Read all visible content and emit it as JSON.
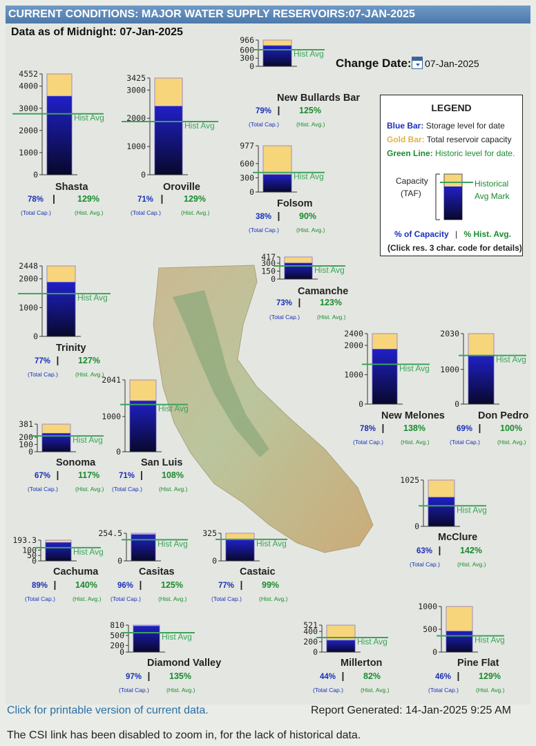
{
  "header": {
    "title": "CURRENT CONDITIONS: MAJOR WATER SUPPLY RESERVOIRS:07-JAN-2025",
    "data_as_of": "Data as of Midnight: 07-Jan-2025"
  },
  "change_date": {
    "label": "Change Date:",
    "value": "07-Jan-2025"
  },
  "legend": {
    "title": "LEGEND",
    "blue_key": "Blue Bar:",
    "blue_text": "Storage level for date",
    "gold_key": "Gold Bar:",
    "gold_text": "Total reservoir capacity",
    "green_key": "Green Line:",
    "green_text": "Historic level for date.",
    "capacity_label": "Capacity",
    "taf_label": "(TAF)",
    "hist_label_1": "Historical",
    "hist_label_2": "Avg Mark",
    "pct_capacity": "% of Capacity",
    "pct_hist": "% Hist. Avg.",
    "sep": "|",
    "note": "(Click res. 3 char. code for details)"
  },
  "colors": {
    "storage": "#1c1c9c",
    "capacity": "#f7d57b",
    "hist": "#3aa35a",
    "pct_capacity": "#1a2fb8",
    "pct_hist": "#1a8a2e",
    "header": "#5a86b8"
  },
  "labels": {
    "hist_avg": "Hist Avg",
    "total_cap": "(Total Cap.)",
    "hist_avg_small": "(Hist. Avg.)"
  },
  "chart_data": {
    "type": "bar",
    "units": "TAF",
    "reservoirs": [
      {
        "name": "Shasta",
        "capacity": 4552,
        "storage": 3551,
        "hist_avg": 2753,
        "pct_capacity": "78%",
        "pct_hist": "129%",
        "ticks": [
          "4552",
          "4000",
          "3000",
          "2000",
          "1000",
          "0"
        ]
      },
      {
        "name": "Oroville",
        "capacity": 3425,
        "storage": 2432,
        "hist_avg": 1885,
        "pct_capacity": "71%",
        "pct_hist": "129%",
        "ticks": [
          "3425",
          "3000",
          "2000",
          "1000",
          "0"
        ]
      },
      {
        "name": "New Bullards Bar",
        "capacity": 966,
        "storage": 763,
        "hist_avg": 610,
        "pct_capacity": "79%",
        "pct_hist": "125%",
        "ticks": [
          "966",
          "600",
          "300",
          "0"
        ]
      },
      {
        "name": "Folsom",
        "capacity": 977,
        "storage": 371,
        "hist_avg": 412,
        "pct_capacity": "38%",
        "pct_hist": "90%",
        "ticks": [
          "977",
          "600",
          "300",
          "0"
        ]
      },
      {
        "name": "Trinity",
        "capacity": 2448,
        "storage": 1885,
        "hist_avg": 1484,
        "pct_capacity": "77%",
        "pct_hist": "127%",
        "ticks": [
          "2448",
          "2000",
          "1000",
          "0"
        ]
      },
      {
        "name": "Camanche",
        "capacity": 417,
        "storage": 304,
        "hist_avg": 247,
        "pct_capacity": "73%",
        "pct_hist": "123%",
        "ticks": [
          "417",
          "300",
          "150",
          "0"
        ]
      },
      {
        "name": "New Melones",
        "capacity": 2400,
        "storage": 1872,
        "hist_avg": 1357,
        "pct_capacity": "78%",
        "pct_hist": "138%",
        "ticks": [
          "2400",
          "2000",
          "1000",
          "0"
        ]
      },
      {
        "name": "Don Pedro",
        "capacity": 2030,
        "storage": 1401,
        "hist_avg": 1401,
        "pct_capacity": "69%",
        "pct_hist": "100%",
        "ticks": [
          "2030",
          "1000",
          "0"
        ]
      },
      {
        "name": "Sonoma",
        "capacity": 381,
        "storage": 255,
        "hist_avg": 218,
        "pct_capacity": "67%",
        "pct_hist": "117%",
        "ticks": [
          "381",
          "200",
          "100",
          "0"
        ]
      },
      {
        "name": "San Luis",
        "capacity": 2041,
        "storage": 1449,
        "hist_avg": 1342,
        "pct_capacity": "71%",
        "pct_hist": "108%",
        "ticks": [
          "2041",
          "1000",
          "0"
        ]
      },
      {
        "name": "McClure",
        "capacity": 1025,
        "storage": 646,
        "hist_avg": 455,
        "pct_capacity": "63%",
        "pct_hist": "142%",
        "ticks": [
          "1025",
          "0"
        ]
      },
      {
        "name": "Cachuma",
        "capacity": 193.3,
        "storage": 172,
        "hist_avg": 123,
        "pct_capacity": "89%",
        "pct_hist": "140%",
        "ticks": [
          "193.3",
          "100",
          "50",
          "0"
        ]
      },
      {
        "name": "Casitas",
        "capacity": 254.5,
        "storage": 244,
        "hist_avg": 195,
        "pct_capacity": "96%",
        "pct_hist": "125%",
        "ticks": [
          "254.5",
          "0"
        ]
      },
      {
        "name": "Castaic",
        "capacity": 325,
        "storage": 250,
        "hist_avg": 253,
        "pct_capacity": "77%",
        "pct_hist": "99%",
        "ticks": [
          "325",
          "0"
        ]
      },
      {
        "name": "Diamond Valley",
        "capacity": 810,
        "storage": 786,
        "hist_avg": 582,
        "pct_capacity": "97%",
        "pct_hist": "135%",
        "ticks": [
          "810",
          "500",
          "200",
          "0"
        ]
      },
      {
        "name": "Millerton",
        "capacity": 521,
        "storage": 229,
        "hist_avg": 280,
        "pct_capacity": "44%",
        "pct_hist": "82%",
        "ticks": [
          "521",
          "400",
          "200",
          "0"
        ]
      },
      {
        "name": "Pine Flat",
        "capacity": 1000,
        "storage": 460,
        "hist_avg": 357,
        "pct_capacity": "46%",
        "pct_hist": "129%",
        "ticks": [
          "1000",
          "500",
          "0"
        ]
      }
    ]
  },
  "footer": {
    "printable_link": "Click for printable version of current data.",
    "report_generated": "Report Generated: 14-Jan-2025 9:25 AM",
    "note": "The CSI link has been disabled to zoom in, for the lack of historical data."
  }
}
